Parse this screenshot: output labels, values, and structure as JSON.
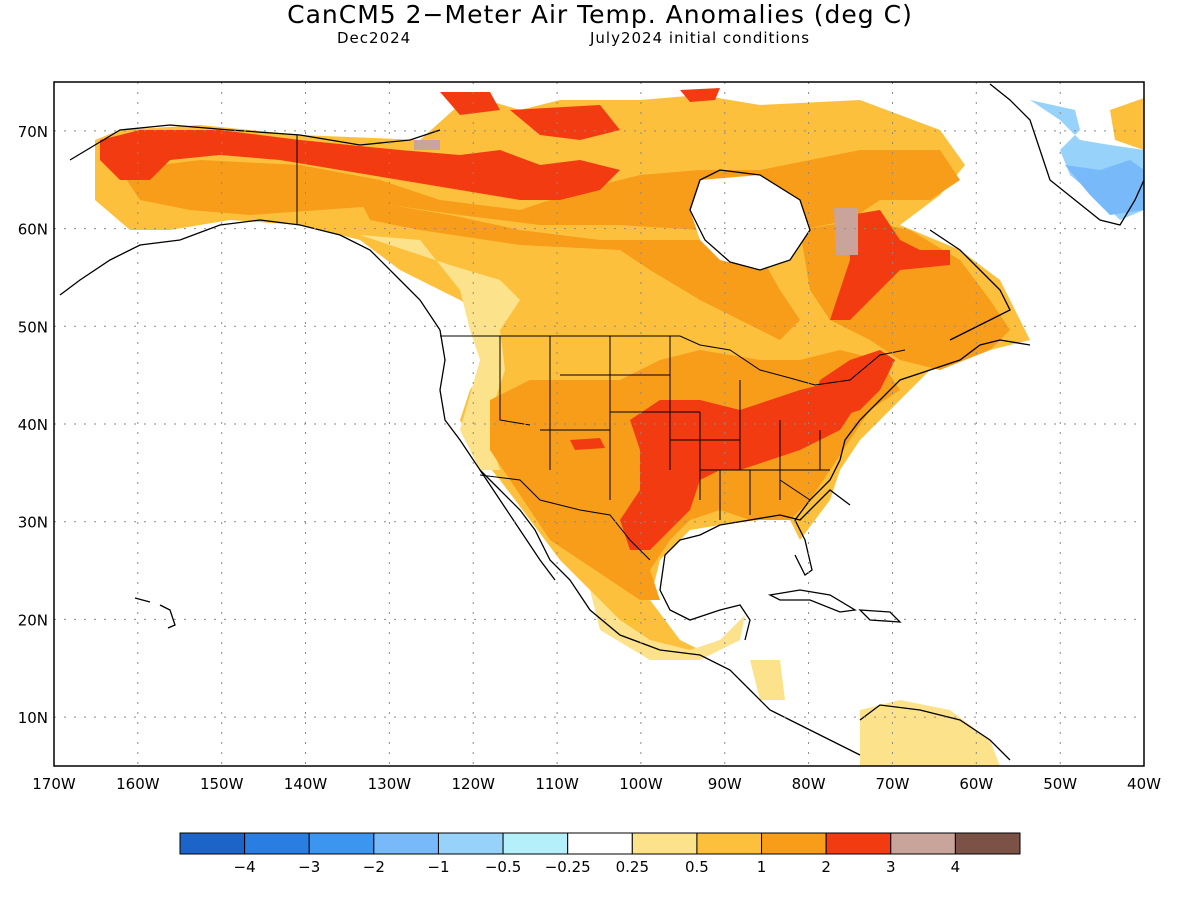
{
  "title": "CanCM5 2−Meter Air Temp. Anomalies (deg C)",
  "subtitle_left": "Dec2024",
  "subtitle_right": "July2024 initial conditions",
  "axes": {
    "lon_labels": [
      "170W",
      "160W",
      "150W",
      "140W",
      "130W",
      "120W",
      "110W",
      "100W",
      "90W",
      "80W",
      "70W",
      "60W",
      "50W",
      "40W"
    ],
    "lat_labels": [
      "10N",
      "20N",
      "30N",
      "40N",
      "50N",
      "60N",
      "70N"
    ],
    "lon_range": [
      -170,
      -40
    ],
    "lat_range": [
      5,
      75
    ],
    "grid": "dotted"
  },
  "colorbar": {
    "colors": [
      "#1c64c8",
      "#2a7de1",
      "#3c96f0",
      "#78b9fa",
      "#96d2fa",
      "#b4f0fa",
      "#ffffff",
      "#fde28c",
      "#fcc03c",
      "#f89d19",
      "#f33b12",
      "#c9a49b",
      "#7b5245"
    ],
    "labels": [
      "−4",
      "−3",
      "−2",
      "−1",
      "−0.5",
      "−0.25",
      "0.25",
      "0.5",
      "1",
      "2",
      "3",
      "4"
    ]
  },
  "map": {
    "land_color": "#ffffff",
    "anomaly_colors": {
      "light": "#fde28c",
      "orange_light": "#fcc03c",
      "orange": "#f89d19",
      "red": "#f33b12",
      "brown": "#c9a49b",
      "blue_light": "#96d2fa",
      "blue": "#78b9fa"
    }
  }
}
